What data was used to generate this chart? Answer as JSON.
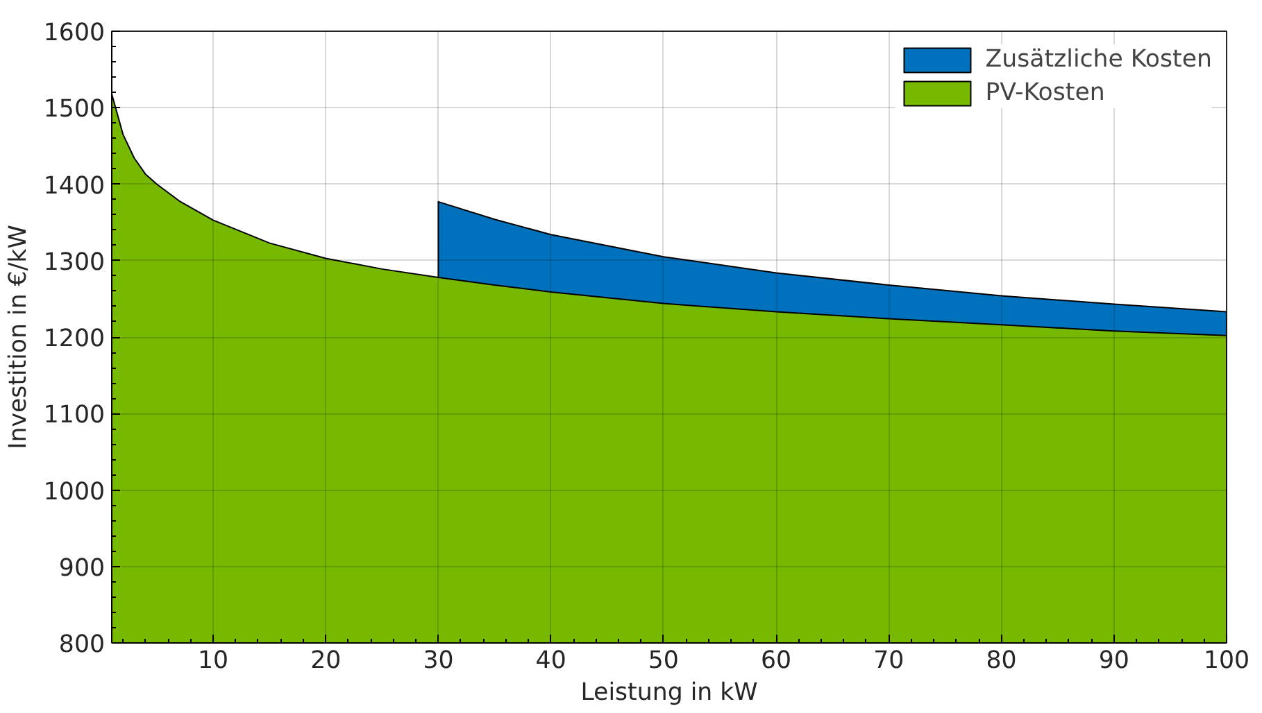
{
  "chart_data": {
    "type": "area",
    "xlabel": "Leistung in kW",
    "ylabel": "Investition in €/kW",
    "x": [
      1,
      2,
      3,
      4,
      5,
      7,
      10,
      15,
      20,
      25,
      30,
      35,
      40,
      50,
      60,
      70,
      80,
      90,
      100
    ],
    "series": [
      {
        "name": "Zusätzliche Kosten",
        "color": "#0072bd",
        "values": [
          null,
          null,
          null,
          null,
          null,
          null,
          null,
          null,
          null,
          null,
          1377,
          1354,
          1334,
          1305,
          1284,
          1268,
          1254,
          1243,
          1233
        ]
      },
      {
        "name": "PV-Kosten",
        "color": "#77b800",
        "values": [
          1518,
          1465,
          1434,
          1413,
          1400,
          1378,
          1353,
          1323,
          1303,
          1289,
          1278,
          1268,
          1259,
          1244,
          1233,
          1224,
          1216,
          1208,
          1202
        ]
      }
    ],
    "xlim": [
      1,
      100
    ],
    "xticks": [
      10,
      20,
      30,
      40,
      50,
      60,
      70,
      80,
      90,
      100
    ],
    "ylim": [
      800,
      1600
    ],
    "yticks": [
      800,
      900,
      1000,
      1100,
      1200,
      1300,
      1400,
      1500,
      1600
    ],
    "grid": true,
    "legend": "top right"
  }
}
